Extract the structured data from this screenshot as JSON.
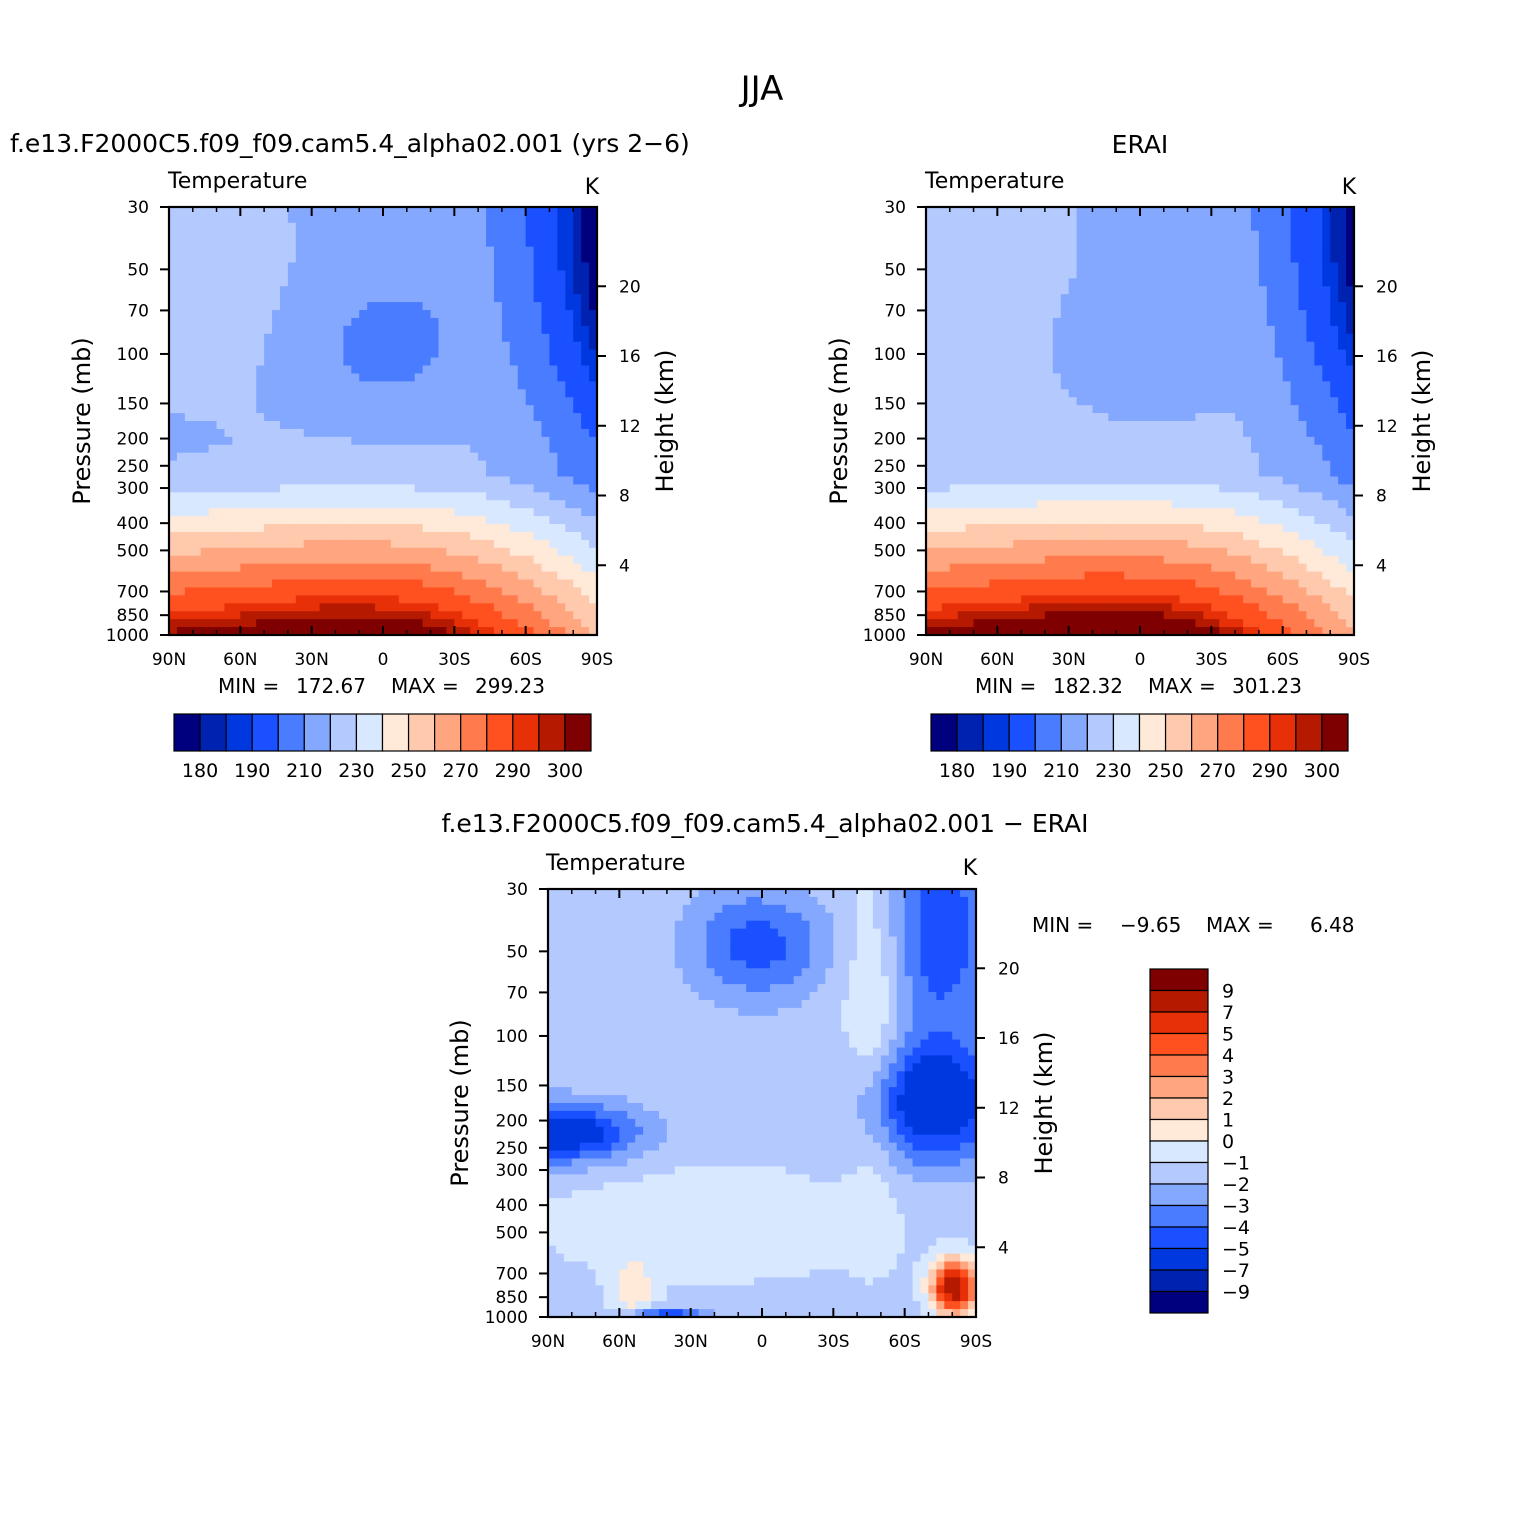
{
  "page": {
    "title": "JJA"
  },
  "panels": [
    {
      "id": "model",
      "title": "f.e13.F2000C5.f09_f09.cam5.4_alpha02.001 (yrs 2−6)",
      "variable": "Temperature",
      "units": "K",
      "ylabel": "Pressure (mb)",
      "ylabel_right": "Height (km)",
      "stats": {
        "min_label": "MIN =",
        "min": "172.67",
        "max_label": "MAX =",
        "max": "299.23"
      }
    },
    {
      "id": "obs",
      "title": "ERAI",
      "variable": "Temperature",
      "units": "K",
      "ylabel": "Pressure (mb)",
      "ylabel_right": "Height (km)",
      "stats": {
        "min_label": "MIN =",
        "min": "182.32",
        "max_label": "MAX =",
        "max": "301.23"
      }
    },
    {
      "id": "diff",
      "title": "f.e13.F2000C5.f09_f09.cam5.4_alpha02.001 − ERAI",
      "variable": "Temperature",
      "units": "K",
      "ylabel": "Pressure (mb)",
      "ylabel_right": "Height (km)",
      "stats": {
        "min_label": "MIN =",
        "min": "−9.65",
        "max_label": "MAX =",
        "max": "6.48"
      }
    }
  ],
  "chart_data": [
    {
      "type": "heatmap",
      "panel": "model",
      "x_ticks": [
        "90N",
        "60N",
        "30N",
        "0",
        "30S",
        "60S",
        "90S"
      ],
      "y_ticks": [
        "30",
        "50",
        "70",
        "100",
        "150",
        "200",
        "250",
        "300",
        "400",
        "500",
        "700",
        "850",
        "1000"
      ],
      "y_ticks_right": [
        "20",
        "16",
        "12",
        "8",
        "4"
      ],
      "yscale": "log",
      "ylim": [
        1000,
        30
      ],
      "xlim": [
        "90N",
        "90S"
      ],
      "colorbar": {
        "labels": [
          "180",
          "190",
          "210",
          "230",
          "250",
          "270",
          "290",
          "300"
        ],
        "levels": [
          180,
          185,
          190,
          200,
          210,
          220,
          230,
          240,
          250,
          260,
          270,
          280,
          290,
          295,
          300
        ],
        "colors": [
          "#00007f",
          "#0022b0",
          "#0038e0",
          "#1a50ff",
          "#4a7cff",
          "#85a8ff",
          "#b4caff",
          "#d8e8ff",
          "#ffe9d8",
          "#ffc9ad",
          "#ffa680",
          "#ff7b4d",
          "#ff5020",
          "#e83008",
          "#b51a00",
          "#7f0000"
        ]
      }
    },
    {
      "type": "heatmap",
      "panel": "obs",
      "x_ticks": [
        "90N",
        "60N",
        "30N",
        "0",
        "30S",
        "60S",
        "90S"
      ],
      "y_ticks": [
        "30",
        "50",
        "70",
        "100",
        "150",
        "200",
        "250",
        "300",
        "400",
        "500",
        "700",
        "850",
        "1000"
      ],
      "y_ticks_right": [
        "20",
        "16",
        "12",
        "8",
        "4"
      ],
      "yscale": "log",
      "ylim": [
        1000,
        30
      ],
      "xlim": [
        "90N",
        "90S"
      ],
      "colorbar": {
        "labels": [
          "180",
          "190",
          "210",
          "230",
          "250",
          "270",
          "290",
          "300"
        ],
        "levels": [
          180,
          185,
          190,
          200,
          210,
          220,
          230,
          240,
          250,
          260,
          270,
          280,
          290,
          295,
          300
        ],
        "colors": [
          "#00007f",
          "#0022b0",
          "#0038e0",
          "#1a50ff",
          "#4a7cff",
          "#85a8ff",
          "#b4caff",
          "#d8e8ff",
          "#ffe9d8",
          "#ffc9ad",
          "#ffa680",
          "#ff7b4d",
          "#ff5020",
          "#e83008",
          "#b51a00",
          "#7f0000"
        ]
      }
    },
    {
      "type": "heatmap",
      "panel": "diff",
      "x_ticks": [
        "90N",
        "60N",
        "30N",
        "0",
        "30S",
        "60S",
        "90S"
      ],
      "y_ticks": [
        "30",
        "50",
        "70",
        "100",
        "150",
        "200",
        "250",
        "300",
        "400",
        "500",
        "700",
        "850",
        "1000"
      ],
      "y_ticks_right": [
        "20",
        "16",
        "12",
        "8",
        "4"
      ],
      "yscale": "log",
      "ylim": [
        1000,
        30
      ],
      "xlim": [
        "90N",
        "90S"
      ],
      "colorbar": {
        "labels": [
          "9",
          "7",
          "5",
          "4",
          "3",
          "2",
          "1",
          "0",
          "−1",
          "−2",
          "−3",
          "−4",
          "−5",
          "−7",
          "−9"
        ],
        "levels": [
          9,
          7,
          5,
          4,
          3,
          2,
          1,
          0,
          -1,
          -2,
          -3,
          -4,
          -5,
          -7,
          -9
        ],
        "colors": [
          "#7f0000",
          "#b51a00",
          "#e83008",
          "#ff5020",
          "#ff7b4d",
          "#ffa680",
          "#ffc9ad",
          "#ffe9d8",
          "#d8e8ff",
          "#b4caff",
          "#85a8ff",
          "#4a7cff",
          "#1a50ff",
          "#0038e0",
          "#0022b0",
          "#00007f"
        ]
      }
    }
  ]
}
